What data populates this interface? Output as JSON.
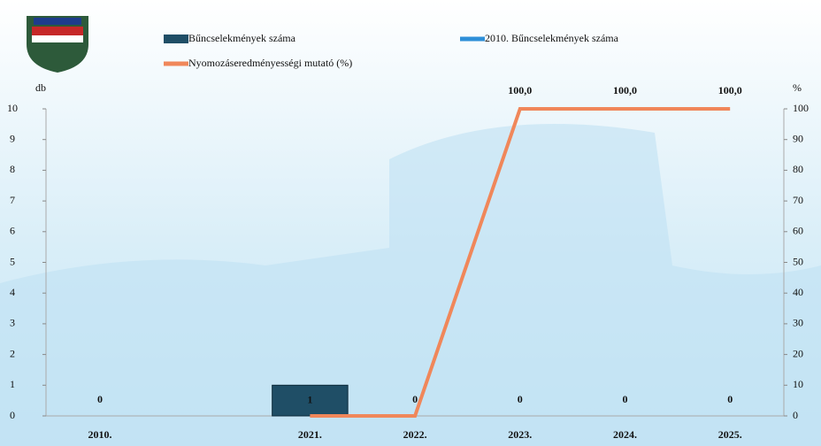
{
  "chart_data": {
    "type": "bar",
    "categories": [
      "2010.",
      null,
      "2021.",
      "2022.",
      "2023.",
      "2024.",
      "2025."
    ],
    "series": [
      {
        "name": "Bűncselekmények száma",
        "color": "#1f4e66",
        "type": "bar",
        "values": [
          0,
          null,
          1,
          0,
          0,
          0,
          0
        ]
      },
      {
        "name": "2010. Bűncselekmények száma",
        "color": "#2e8fd8",
        "type": "line",
        "values": [
          0,
          null,
          null,
          null,
          null,
          null,
          null
        ]
      },
      {
        "name": "Nyomozáseredményességi mutató (%)",
        "color": "#f0875a",
        "type": "line",
        "axis": "y2",
        "values": [
          null,
          null,
          0,
          0,
          100,
          100,
          100
        ],
        "value_labels": [
          null,
          null,
          null,
          null,
          "100,0",
          "100,0",
          "100,0"
        ]
      }
    ],
    "ylabel": "db",
    "y2label": "%",
    "ylim": [
      0,
      10
    ],
    "yticks": [
      0,
      1,
      2,
      3,
      4,
      5,
      6,
      7,
      8,
      9,
      10
    ],
    "y2lim": [
      0,
      100
    ],
    "y2ticks": [
      0,
      10,
      20,
      30,
      40,
      50,
      60,
      70,
      80,
      90,
      100
    ]
  }
}
